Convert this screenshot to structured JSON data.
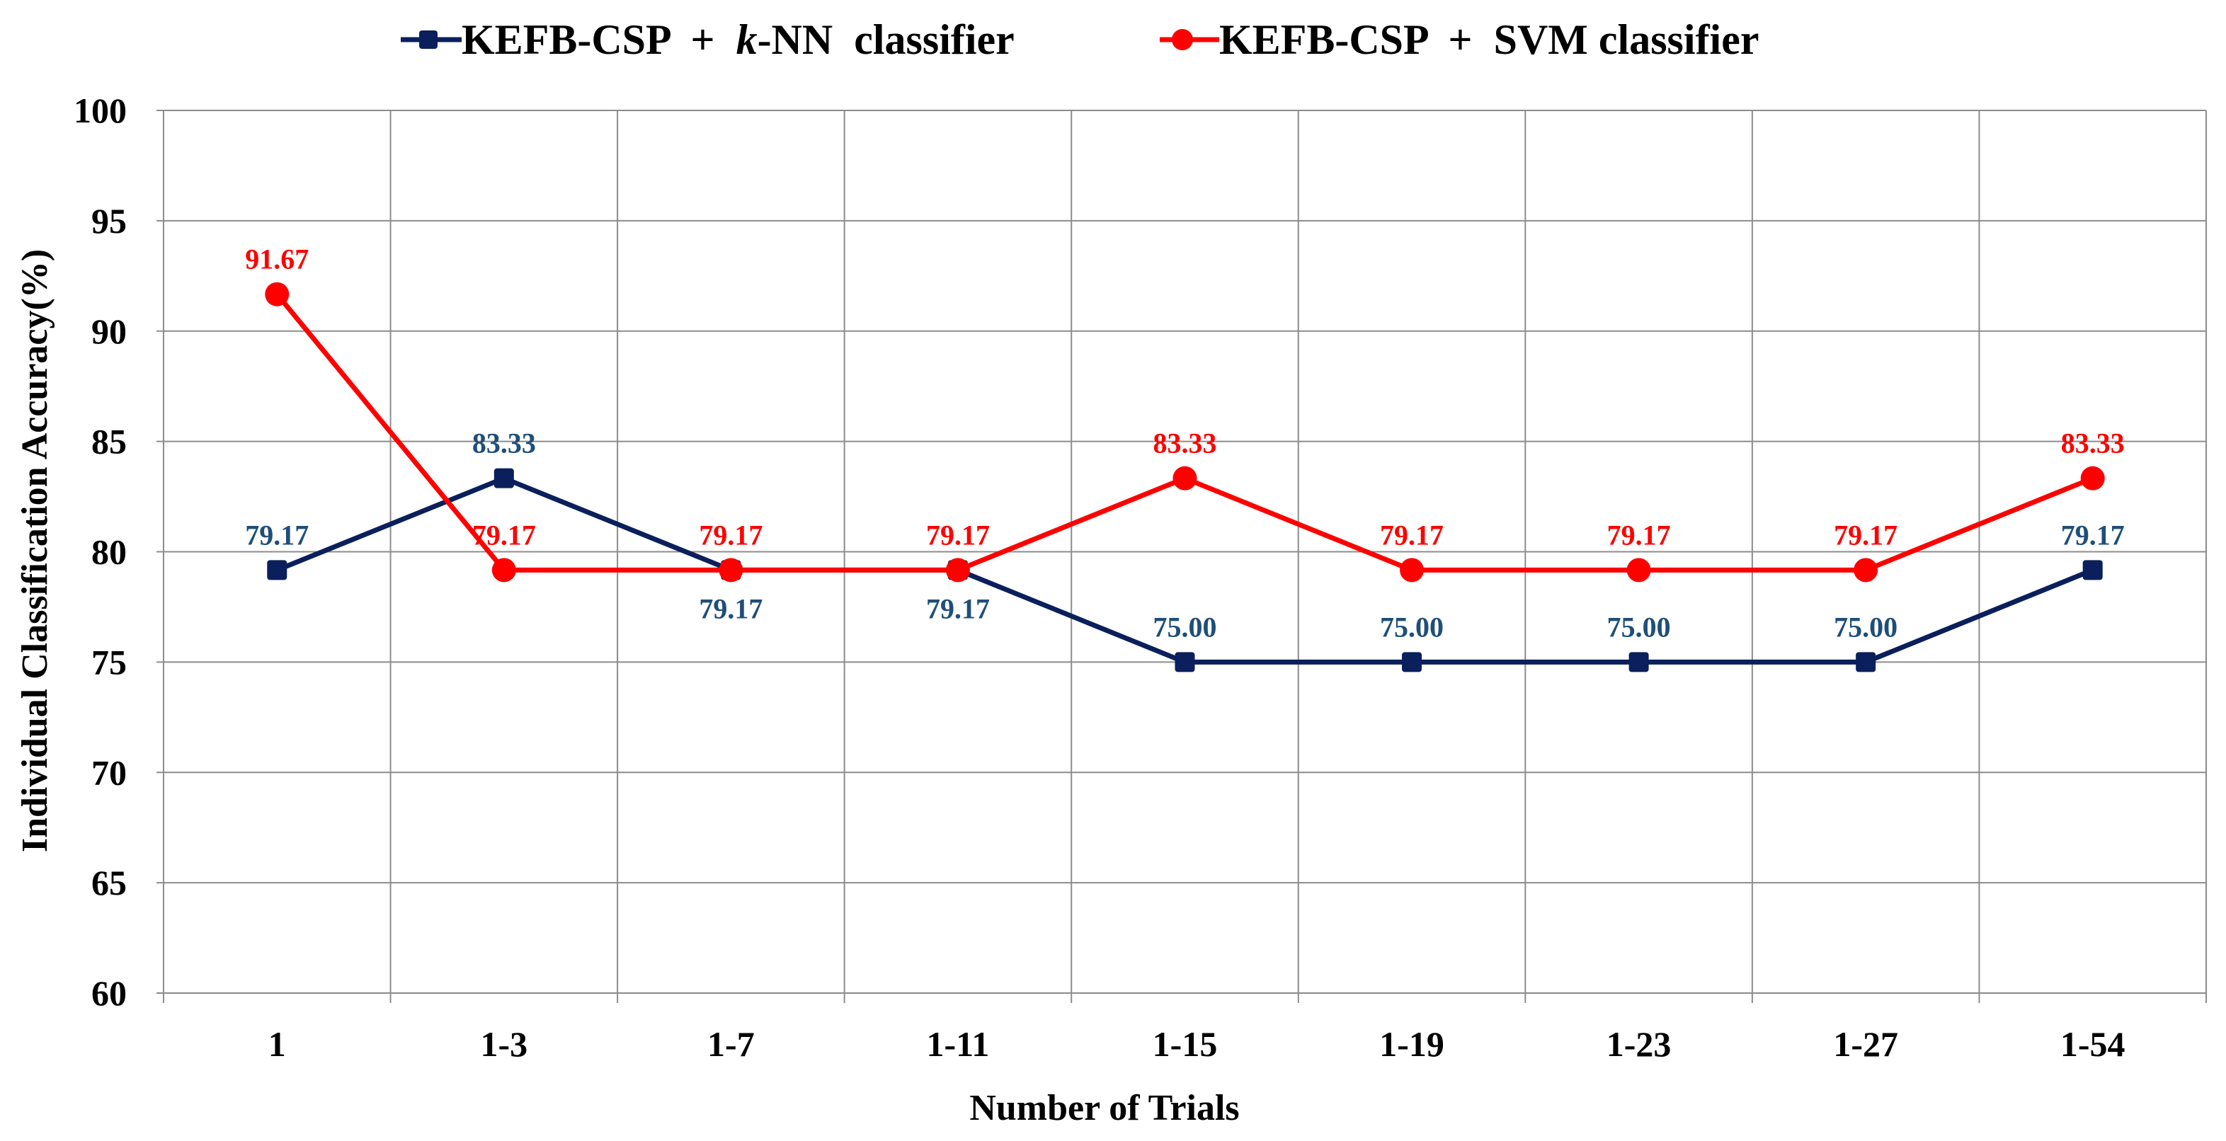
{
  "chart_data": {
    "type": "line",
    "title": "",
    "xlabel": "Number of Trials",
    "ylabel": "Individual Classification Accuracy(%)",
    "ylim": [
      60,
      100
    ],
    "yticks": [
      60,
      65,
      70,
      75,
      80,
      85,
      90,
      95,
      100
    ],
    "grid": true,
    "legend_position": "top",
    "categories": [
      "1",
      "1-3",
      "1-7",
      "1-11",
      "1-15",
      "1-19",
      "1-23",
      "1-27",
      "1-54"
    ],
    "series": [
      {
        "name": "KEFB-CSP + k-NN classifier",
        "legend_parts": [
          "KEFB-CSP  +  ",
          "k",
          "-NN  classifier"
        ],
        "color": "#0a1f5c",
        "label_color": "#1f4e79",
        "marker": "square",
        "values": [
          79.17,
          83.33,
          79.17,
          79.17,
          75.0,
          75.0,
          75.0,
          75.0,
          79.17
        ],
        "labels": [
          "79.17",
          "83.33",
          "79.17",
          "79.17",
          "75.00",
          "75.00",
          "75.00",
          "75.00",
          "79.17"
        ],
        "label_positions": [
          "above",
          "above",
          "below",
          "below",
          "above",
          "above",
          "above",
          "above",
          "above"
        ]
      },
      {
        "name": "KEFB-CSP + SVM classifier",
        "legend_parts": [
          "KEFB-CSP  +  SVM classifier"
        ],
        "color": "#ff0000",
        "label_color": "#ff0000",
        "marker": "circle",
        "values": [
          91.67,
          79.17,
          79.17,
          79.17,
          83.33,
          79.17,
          79.17,
          79.17,
          83.33
        ],
        "labels": [
          "91.67",
          "79.17",
          "79.17",
          "79.17",
          "83.33",
          "79.17",
          "79.17",
          "79.17",
          "83.33"
        ],
        "label_positions": [
          "above",
          "above",
          "above",
          "above",
          "above",
          "above",
          "above",
          "above",
          "above"
        ]
      }
    ]
  }
}
